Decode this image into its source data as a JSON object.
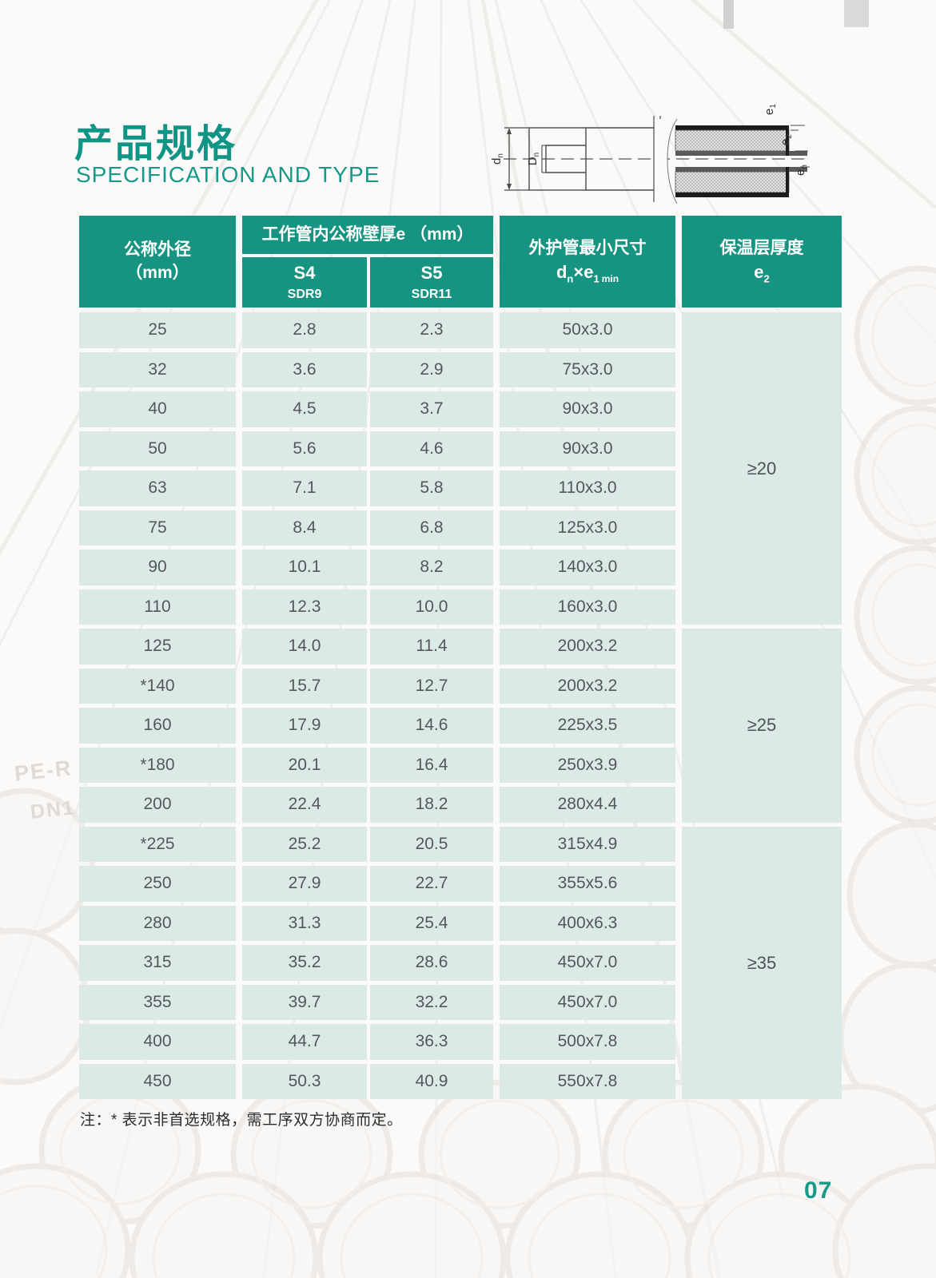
{
  "page": {
    "title": "产品规格",
    "subtitle": "SPECIFICATION AND TYPE",
    "page_number": "07",
    "footnote": "注：* 表示非首选规格，需工序双方协商而定。",
    "accent_color": "#179481",
    "cell_color": "#dbeae6",
    "background_marks": {
      "mark1": "PE-R",
      "mark2": "DN1"
    }
  },
  "diagram": {
    "label_dn": {
      "base": "d",
      "sub": "n"
    },
    "label_Dn": {
      "base": "D",
      "sub": "n"
    },
    "label_e1": {
      "base": "e",
      "sub": "1"
    },
    "label_e2": {
      "base": "e",
      "sub": "2"
    },
    "label_en": {
      "base": "e",
      "sub": "n"
    }
  },
  "table": {
    "header": {
      "diameter_line1": "公称外径",
      "diameter_line2": "（mm）",
      "wall_group_title": "工作管内公称壁厚e （mm）",
      "s4_label": "S4",
      "s4_sdr": "SDR9",
      "s5_label": "S5",
      "s5_sdr": "SDR11",
      "outer_line1": "外护管最小尺寸",
      "outer_formula": {
        "d_base": "d",
        "d_sub": "n",
        "times": "×",
        "e_base": "e",
        "e_sub": "1",
        "min": "min"
      },
      "insulation_line1": "保温层厚度",
      "insulation_formula": {
        "e_base": "e",
        "e_sub": "2"
      }
    },
    "groups": [
      {
        "insulation_thickness": "≥20",
        "rows": [
          [
            "25",
            "2.8",
            "2.3",
            "50x3.0"
          ],
          [
            "32",
            "3.6",
            "2.9",
            "75x3.0"
          ],
          [
            "40",
            "4.5",
            "3.7",
            "90x3.0"
          ],
          [
            "50",
            "5.6",
            "4.6",
            "90x3.0"
          ],
          [
            "63",
            "7.1",
            "5.8",
            "110x3.0"
          ],
          [
            "75",
            "8.4",
            "6.8",
            "125x3.0"
          ],
          [
            "90",
            "10.1",
            "8.2",
            "140x3.0"
          ],
          [
            "110",
            "12.3",
            "10.0",
            "160x3.0"
          ]
        ]
      },
      {
        "insulation_thickness": "≥25",
        "rows": [
          [
            "125",
            "14.0",
            "11.4",
            "200x3.2"
          ],
          [
            "*140",
            "15.7",
            "12.7",
            "200x3.2"
          ],
          [
            "160",
            "17.9",
            "14.6",
            "225x3.5"
          ],
          [
            "*180",
            "20.1",
            "16.4",
            "250x3.9"
          ],
          [
            "200",
            "22.4",
            "18.2",
            "280x4.4"
          ]
        ]
      },
      {
        "insulation_thickness": "≥35",
        "rows": [
          [
            "*225",
            "25.2",
            "20.5",
            "315x4.9"
          ],
          [
            "250",
            "27.9",
            "22.7",
            "355x5.6"
          ],
          [
            "280",
            "31.3",
            "25.4",
            "400x6.3"
          ],
          [
            "315",
            "35.2",
            "28.6",
            "450x7.0"
          ],
          [
            "355",
            "39.7",
            "32.2",
            "450x7.0"
          ],
          [
            "400",
            "44.7",
            "36.3",
            "500x7.8"
          ],
          [
            "450",
            "50.3",
            "40.9",
            "550x7.8"
          ]
        ]
      }
    ]
  }
}
